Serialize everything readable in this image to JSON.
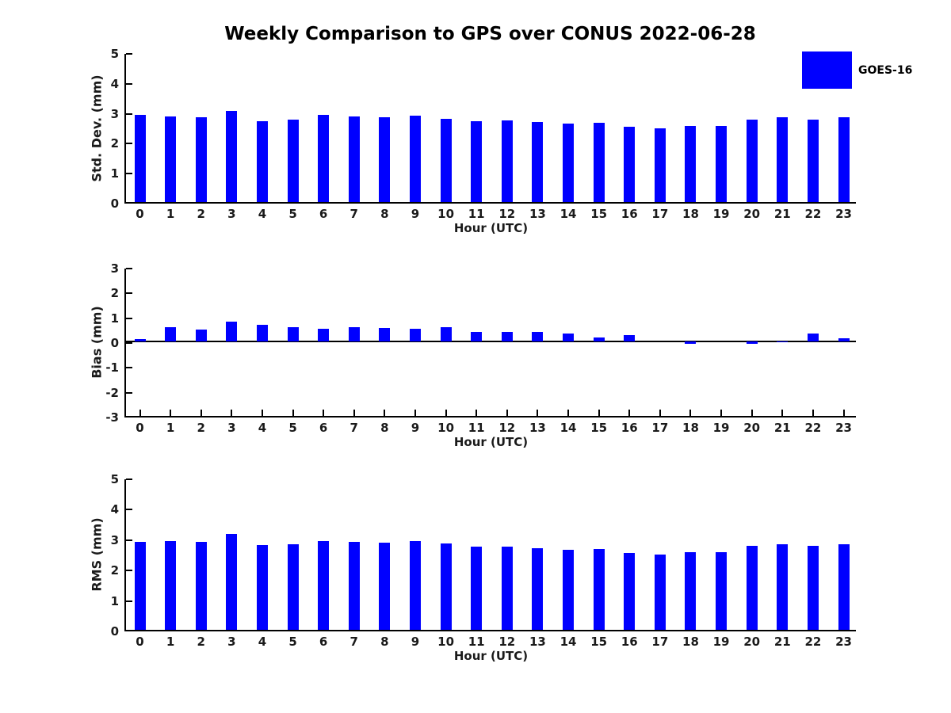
{
  "title": "Weekly Comparison to GPS over CONUS 2022-06-28",
  "legend": {
    "position": "top-right",
    "items": [
      {
        "label": "GOES-16",
        "color": "#0000FF"
      }
    ]
  },
  "colors": {
    "bar": "#0000FF",
    "axis": "#000000",
    "text": "#1a1a1a",
    "background": "#FFFFFF"
  },
  "chart_data": [
    {
      "type": "bar",
      "series_name": "GOES-16",
      "ylabel": "Std. Dev. (mm)",
      "xlabel": "Hour (UTC)",
      "categories": [
        "0",
        "1",
        "2",
        "3",
        "4",
        "5",
        "6",
        "7",
        "8",
        "9",
        "10",
        "11",
        "12",
        "13",
        "14",
        "15",
        "16",
        "17",
        "18",
        "19",
        "20",
        "21",
        "22",
        "23"
      ],
      "values": [
        2.9,
        2.87,
        2.84,
        3.05,
        2.71,
        2.74,
        2.9,
        2.85,
        2.82,
        2.89,
        2.79,
        2.71,
        2.72,
        2.66,
        2.61,
        2.64,
        2.51,
        2.47,
        2.55,
        2.55,
        2.75,
        2.82,
        2.74,
        2.82
      ],
      "ylim": [
        0,
        5
      ],
      "yticks": [
        0,
        1,
        2,
        3,
        4,
        5
      ],
      "grid": false,
      "bar_color": "#0000FF"
    },
    {
      "type": "bar",
      "series_name": "GOES-16",
      "ylabel": "Bias (mm)",
      "xlabel": "Hour (UTC)",
      "categories": [
        "0",
        "1",
        "2",
        "3",
        "4",
        "5",
        "6",
        "7",
        "8",
        "9",
        "10",
        "11",
        "12",
        "13",
        "14",
        "15",
        "16",
        "17",
        "18",
        "19",
        "20",
        "21",
        "22",
        "23"
      ],
      "values": [
        0.1,
        0.57,
        0.48,
        0.8,
        0.67,
        0.57,
        0.5,
        0.57,
        0.55,
        0.5,
        0.57,
        0.38,
        0.38,
        0.38,
        0.32,
        0.15,
        0.27,
        0.0,
        -0.1,
        0.0,
        -0.1,
        -0.03,
        0.32,
        0.12
      ],
      "ylim": [
        -3,
        3
      ],
      "yticks": [
        -3,
        -2,
        -1,
        0,
        1,
        2,
        3
      ],
      "grid": false,
      "zero_line": true,
      "bar_color": "#0000FF"
    },
    {
      "type": "bar",
      "series_name": "GOES-16",
      "ylabel": "RMS (mm)",
      "xlabel": "Hour (UTC)",
      "categories": [
        "0",
        "1",
        "2",
        "3",
        "4",
        "5",
        "6",
        "7",
        "8",
        "9",
        "10",
        "11",
        "12",
        "13",
        "14",
        "15",
        "16",
        "17",
        "18",
        "19",
        "20",
        "21",
        "22",
        "23"
      ],
      "values": [
        2.9,
        2.92,
        2.88,
        3.14,
        2.79,
        2.8,
        2.93,
        2.9,
        2.87,
        2.92,
        2.83,
        2.73,
        2.74,
        2.68,
        2.62,
        2.65,
        2.52,
        2.47,
        2.56,
        2.56,
        2.75,
        2.82,
        2.76,
        2.82
      ],
      "ylim": [
        0,
        5
      ],
      "yticks": [
        0,
        1,
        2,
        3,
        4,
        5
      ],
      "grid": false,
      "bar_color": "#0000FF"
    }
  ]
}
